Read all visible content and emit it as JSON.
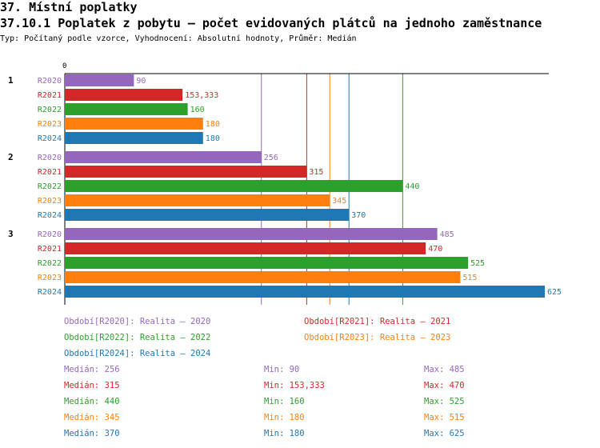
{
  "header": {
    "section_title": "37. Místní poplatky",
    "chart_title": "37.10.1 Poplatek z pobytu – počet evidovaných plátců na jednoho zaměstnance",
    "subtitle": "Typ: Počítaný podle vzorce, Vyhodnocení: Absolutní hodnoty, Průměr: Medián"
  },
  "chart_data": {
    "type": "bar",
    "orientation": "horizontal",
    "axis_zero_label": "0",
    "xlim": [
      0,
      625
    ],
    "categories": [
      "1",
      "2",
      "3"
    ],
    "series": [
      {
        "name": "R2020",
        "color": "#9467bd",
        "values": [
          90,
          256,
          485
        ],
        "labels": [
          "90",
          "256",
          "485"
        ]
      },
      {
        "name": "R2021",
        "color": "#d62728",
        "values": [
          153.333,
          315,
          470
        ],
        "labels": [
          "153,333",
          "315",
          "470"
        ]
      },
      {
        "name": "R2022",
        "color": "#2ca02c",
        "values": [
          160,
          440,
          525
        ],
        "labels": [
          "160",
          "440",
          "525"
        ]
      },
      {
        "name": "R2023",
        "color": "#ff7f0e",
        "values": [
          180,
          345,
          515
        ],
        "labels": [
          "180",
          "345",
          "515"
        ]
      },
      {
        "name": "R2024",
        "color": "#1f77b4",
        "values": [
          180,
          370,
          625
        ],
        "labels": [
          "180",
          "370",
          "625"
        ]
      }
    ],
    "median_lines": [
      {
        "series": "R2020",
        "value": 256
      },
      {
        "series": "R2021",
        "value": 315
      },
      {
        "series": "R2022",
        "value": 440
      },
      {
        "series": "R2023",
        "value": 345
      },
      {
        "series": "R2024",
        "value": 370
      }
    ]
  },
  "legend": [
    {
      "text": "Období[R2020]: Realita – 2020",
      "color": "#9467bd"
    },
    {
      "text": "Období[R2021]: Realita – 2021",
      "color": "#d62728"
    },
    {
      "text": "Období[R2022]: Realita – 2022",
      "color": "#2ca02c"
    },
    {
      "text": "Období[R2023]: Realita – 2023",
      "color": "#ff7f0e"
    },
    {
      "text": "Období[R2024]: Realita – 2024",
      "color": "#1f77b4"
    }
  ],
  "stats": [
    {
      "color": "#9467bd",
      "median": "Medián: 256",
      "min": "Min: 90",
      "max": "Max: 485"
    },
    {
      "color": "#d62728",
      "median": "Medián: 315",
      "min": "Min: 153,333",
      "max": "Max: 470"
    },
    {
      "color": "#2ca02c",
      "median": "Medián: 440",
      "min": "Min: 160",
      "max": "Max: 525"
    },
    {
      "color": "#ff7f0e",
      "median": "Medián: 345",
      "min": "Min: 180",
      "max": "Max: 515"
    },
    {
      "color": "#1f77b4",
      "median": "Medián: 370",
      "min": "Min: 180",
      "max": "Max: 625"
    }
  ]
}
